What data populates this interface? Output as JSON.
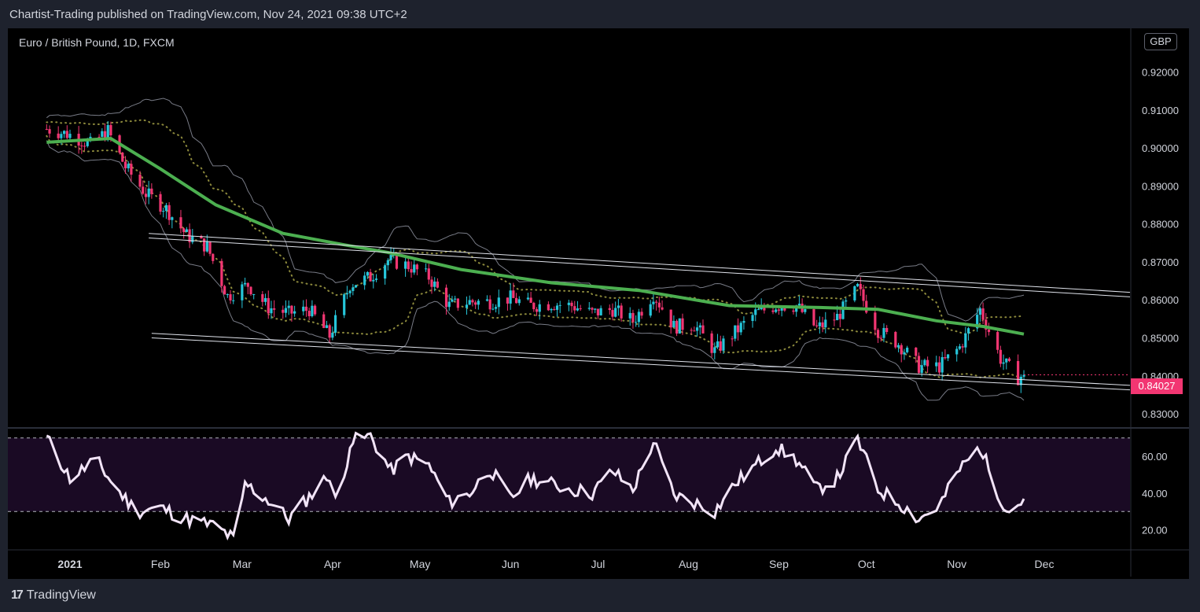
{
  "header": {
    "publish_text": "Chartist-Trading published on TradingView.com, Nov 24, 2021 09:38 UTC+2"
  },
  "legend": {
    "symbol_text": "Euro / British Pound, 1D, FXCM"
  },
  "currency_button": "GBP",
  "last_price_label": "0.84027",
  "footer": {
    "logo_text": "TradingView",
    "logo_mark": "17"
  },
  "colors": {
    "up": "#26c6da",
    "down": "#f23672",
    "sma": "#4caf50",
    "rsi": "#f2e4f7",
    "bands": "#787b86",
    "dots": "#8d8a3c"
  },
  "chart_data": [
    {
      "type": "candlestick",
      "title": "Euro / British Pound, 1D, FXCM",
      "ylim": [
        0.8265,
        0.9315
      ],
      "y_ticks": [
        0.83,
        0.84,
        0.85,
        0.86,
        0.87,
        0.88,
        0.89,
        0.9,
        0.91,
        0.92
      ],
      "y_tick_labels": [
        "0.83000",
        "0.84000",
        "0.85000",
        "0.86000",
        "0.87000",
        "0.88000",
        "0.89000",
        "0.90000",
        "0.91000",
        "0.92000"
      ],
      "x_ticks": [
        "2021",
        "Feb",
        "Mar",
        "Apr",
        "May",
        "Jun",
        "Jul",
        "Aug",
        "Sep",
        "Oct",
        "Nov",
        "Dec"
      ],
      "close_path": [
        [
          "2020-12-24",
          0.905
        ],
        [
          "2021-01-01",
          0.9035
        ],
        [
          "2021-01-08",
          0.901
        ],
        [
          "2021-01-14",
          0.9045
        ],
        [
          "2021-01-20",
          0.895
        ],
        [
          "2021-01-27",
          0.888
        ],
        [
          "2021-02-03",
          0.884
        ],
        [
          "2021-02-10",
          0.877
        ],
        [
          "2021-02-17",
          0.874
        ],
        [
          "2021-02-24",
          0.861
        ],
        [
          "2021-03-03",
          0.864
        ],
        [
          "2021-03-10",
          0.858
        ],
        [
          "2021-03-17",
          0.8565
        ],
        [
          "2021-03-24",
          0.8575
        ],
        [
          "2021-03-31",
          0.8505
        ],
        [
          "2021-04-07",
          0.864
        ],
        [
          "2021-04-14",
          0.866
        ],
        [
          "2021-04-20",
          0.8705
        ],
        [
          "2021-04-27",
          0.869
        ],
        [
          "2021-05-04",
          0.866
        ],
        [
          "2021-05-11",
          0.8585
        ],
        [
          "2021-05-18",
          0.8595
        ],
        [
          "2021-05-25",
          0.8595
        ],
        [
          "2021-06-01",
          0.8605
        ],
        [
          "2021-06-08",
          0.8585
        ],
        [
          "2021-06-15",
          0.859
        ],
        [
          "2021-06-22",
          0.8585
        ],
        [
          "2021-06-29",
          0.8565
        ],
        [
          "2021-07-06",
          0.8575
        ],
        [
          "2021-07-13",
          0.8545
        ],
        [
          "2021-07-20",
          0.8615
        ],
        [
          "2021-07-27",
          0.853
        ],
        [
          "2021-08-03",
          0.8535
        ],
        [
          "2021-08-10",
          0.8465
        ],
        [
          "2021-08-17",
          0.8515
        ],
        [
          "2021-08-24",
          0.8565
        ],
        [
          "2021-08-31",
          0.8585
        ],
        [
          "2021-09-07",
          0.8585
        ],
        [
          "2021-09-14",
          0.8525
        ],
        [
          "2021-09-21",
          0.8555
        ],
        [
          "2021-09-28",
          0.863
        ],
        [
          "2021-10-05",
          0.852
        ],
        [
          "2021-10-12",
          0.8485
        ],
        [
          "2021-10-19",
          0.8425
        ],
        [
          "2021-10-26",
          0.8425
        ],
        [
          "2021-11-02",
          0.8475
        ],
        [
          "2021-11-09",
          0.8575
        ],
        [
          "2021-11-16",
          0.8445
        ],
        [
          "2021-11-22",
          0.8395
        ],
        [
          "2021-11-24",
          0.84027
        ]
      ],
      "sma": [
        [
          "2020-12-24",
          0.9015
        ],
        [
          "2021-01-15",
          0.9025
        ],
        [
          "2021-02-01",
          0.8945
        ],
        [
          "2021-02-20",
          0.885
        ],
        [
          "2021-03-15",
          0.8775
        ],
        [
          "2021-04-05",
          0.8745
        ],
        [
          "2021-04-20",
          0.8725
        ],
        [
          "2021-05-15",
          0.868
        ],
        [
          "2021-06-15",
          0.8645
        ],
        [
          "2021-07-15",
          0.8625
        ],
        [
          "2021-08-15",
          0.8585
        ],
        [
          "2021-09-15",
          0.858
        ],
        [
          "2021-10-05",
          0.8575
        ],
        [
          "2021-10-25",
          0.8545
        ],
        [
          "2021-11-10",
          0.853
        ],
        [
          "2021-11-24",
          0.851
        ]
      ],
      "channel_upper": [
        [
          "2021-01-28",
          0.8775
        ],
        [
          "2021-12-31",
          0.862
        ]
      ],
      "channel_lower": [
        [
          "2021-01-29",
          0.8512
        ],
        [
          "2021-12-31",
          0.8375
        ]
      ],
      "last_price": 0.84027
    },
    {
      "type": "line",
      "title": "RSI",
      "ylim": [
        10,
        75
      ],
      "y_ticks": [
        20,
        40,
        60
      ],
      "y_tick_labels": [
        "20.00",
        "40.00",
        "60.00"
      ],
      "levels": [
        70,
        30
      ],
      "series": [
        [
          [
            "2020-12-24",
            70
          ],
          [
            "2021-01-01",
            48
          ],
          [
            "2021-01-10",
            58
          ],
          [
            "2021-01-17",
            42
          ],
          [
            "2021-01-24",
            30
          ],
          [
            "2021-02-01",
            32
          ],
          [
            "2021-02-10",
            26
          ],
          [
            "2021-02-20",
            22
          ],
          [
            "2021-02-27",
            14
          ],
          [
            "2021-03-02",
            45
          ],
          [
            "2021-03-10",
            36
          ],
          [
            "2021-03-17",
            26
          ],
          [
            "2021-03-24",
            38
          ],
          [
            "2021-03-31",
            50
          ],
          [
            "2021-04-03",
            28
          ],
          [
            "2021-04-07",
            68
          ],
          [
            "2021-04-14",
            71
          ],
          [
            "2021-04-21",
            52
          ],
          [
            "2021-04-27",
            60
          ],
          [
            "2021-05-04",
            55
          ],
          [
            "2021-05-11",
            35
          ],
          [
            "2021-05-18",
            40
          ],
          [
            "2021-05-25",
            53
          ],
          [
            "2021-06-01",
            37
          ],
          [
            "2021-06-08",
            48
          ],
          [
            "2021-06-15",
            45
          ],
          [
            "2021-06-22",
            42
          ],
          [
            "2021-06-29",
            40
          ],
          [
            "2021-07-06",
            52
          ],
          [
            "2021-07-13",
            42
          ],
          [
            "2021-07-20",
            68
          ],
          [
            "2021-07-27",
            39
          ],
          [
            "2021-08-03",
            35
          ],
          [
            "2021-08-10",
            30
          ],
          [
            "2021-08-17",
            45
          ],
          [
            "2021-08-24",
            55
          ],
          [
            "2021-08-31",
            65
          ],
          [
            "2021-09-07",
            58
          ],
          [
            "2021-09-14",
            42
          ],
          [
            "2021-09-21",
            48
          ],
          [
            "2021-09-28",
            69
          ],
          [
            "2021-10-05",
            42
          ],
          [
            "2021-10-12",
            35
          ],
          [
            "2021-10-19",
            26
          ],
          [
            "2021-10-26",
            33
          ],
          [
            "2021-11-02",
            53
          ],
          [
            "2021-11-09",
            65
          ],
          [
            "2021-11-16",
            37
          ],
          [
            "2021-11-19",
            30
          ],
          [
            "2021-11-24",
            37
          ]
        ]
      ]
    }
  ]
}
